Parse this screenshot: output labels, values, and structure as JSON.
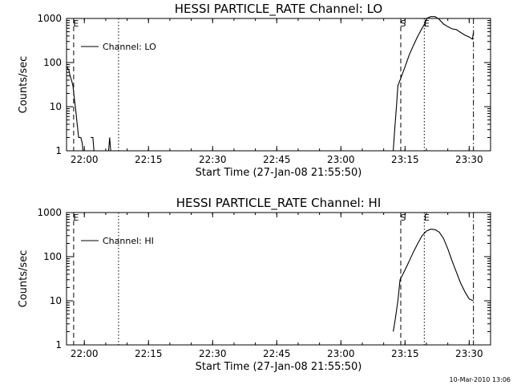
{
  "footer_timestamp": "10-Mar-2010 13:06",
  "chart_data": [
    {
      "type": "line",
      "title": "HESSI PARTICLE_RATE Channel: LO",
      "xlabel": "Start Time (27-Jan-08 21:55:50)",
      "ylabel": "Counts/sec",
      "yscale": "log",
      "ylim": [
        1,
        1000
      ],
      "xlim": [
        "21:55:50",
        "23:35:00"
      ],
      "xticks": [
        "22:00",
        "22:15",
        "22:30",
        "22:45",
        "23:00",
        "23:15",
        "23:30"
      ],
      "yticks": [
        "1",
        "10",
        "100",
        "1000"
      ],
      "legend": "Channel: LO",
      "legend_position": "top-left",
      "markers": [
        {
          "label": "E",
          "time": "21:57:30",
          "style": "dashed"
        },
        {
          "label": "",
          "time": "22:08:00",
          "style": "dotted"
        },
        {
          "label": "S",
          "time": "23:14:00",
          "style": "dashed"
        },
        {
          "label": "E",
          "time": "23:19:30",
          "style": "dotted"
        },
        {
          "label": "",
          "time": "23:31:00",
          "style": "dashdot"
        }
      ],
      "series": [
        {
          "name": "Channel: LO",
          "segments": [
            [
              [
                "21:55:50",
                80
              ],
              [
                "21:56:20",
                70
              ],
              [
                "21:56:40",
                50
              ],
              [
                "21:57:00",
                40
              ],
              [
                "21:57:20",
                30
              ],
              [
                "21:57:40",
                15
              ],
              [
                "21:58:00",
                8
              ],
              [
                "21:58:20",
                4
              ],
              [
                "21:58:40",
                2
              ],
              [
                "21:59:10",
                2
              ],
              [
                "21:59:30",
                1.5
              ],
              [
                "21:59:40",
                1
              ]
            ],
            [
              [
                "22:01:30",
                2
              ],
              [
                "22:02:00",
                2
              ],
              [
                "22:02:15",
                1
              ]
            ],
            [
              [
                "22:05:40",
                1
              ],
              [
                "22:05:55",
                2
              ],
              [
                "22:06:10",
                1
              ]
            ],
            [
              [
                "23:12:15",
                1
              ],
              [
                "23:12:35",
                3
              ],
              [
                "23:13:00",
                10
              ],
              [
                "23:13:20",
                30
              ],
              [
                "23:13:50",
                40
              ],
              [
                "23:15:00",
                80
              ],
              [
                "23:16:00",
                150
              ],
              [
                "23:17:00",
                250
              ],
              [
                "23:18:00",
                400
              ],
              [
                "23:19:00",
                600
              ],
              [
                "23:19:45",
                800
              ],
              [
                "23:20:00",
                1000
              ],
              [
                "23:21:00",
                1100
              ],
              [
                "23:22:00",
                1100
              ],
              [
                "23:23:00",
                950
              ],
              [
                "23:24:00",
                750
              ],
              [
                "23:25:00",
                650
              ],
              [
                "23:26:00",
                580
              ],
              [
                "23:27:00",
                560
              ],
              [
                "23:28:00",
                480
              ],
              [
                "23:29:00",
                420
              ],
              [
                "23:30:00",
                380
              ],
              [
                "23:30:45",
                340
              ],
              [
                "23:31:00",
                480
              ]
            ]
          ]
        }
      ]
    },
    {
      "type": "line",
      "title": "HESSI PARTICLE_RATE Channel: HI",
      "xlabel": "Start Time (27-Jan-08 21:55:50)",
      "ylabel": "Counts/sec",
      "yscale": "log",
      "ylim": [
        1,
        1000
      ],
      "xlim": [
        "21:55:50",
        "23:35:00"
      ],
      "xticks": [
        "22:00",
        "22:15",
        "22:30",
        "22:45",
        "23:00",
        "23:15",
        "23:30"
      ],
      "yticks": [
        "1",
        "10",
        "100",
        "1000"
      ],
      "legend": "Channel: HI",
      "legend_position": "top-left",
      "markers": [
        {
          "label": "E",
          "time": "21:57:30",
          "style": "dashed"
        },
        {
          "label": "",
          "time": "22:08:00",
          "style": "dotted"
        },
        {
          "label": "S",
          "time": "23:14:00",
          "style": "dashed"
        },
        {
          "label": "E",
          "time": "23:19:30",
          "style": "dotted"
        },
        {
          "label": "",
          "time": "23:31:00",
          "style": "dashdot"
        }
      ],
      "series": [
        {
          "name": "Channel: HI",
          "segments": [
            [
              [
                "23:12:15",
                2
              ],
              [
                "23:12:45",
                4
              ],
              [
                "23:13:20",
                10
              ],
              [
                "23:13:50",
                30
              ],
              [
                "23:15:00",
                50
              ],
              [
                "23:16:00",
                80
              ],
              [
                "23:17:00",
                130
              ],
              [
                "23:18:00",
                200
              ],
              [
                "23:19:00",
                300
              ],
              [
                "23:20:00",
                380
              ],
              [
                "23:21:00",
                420
              ],
              [
                "23:22:00",
                410
              ],
              [
                "23:23:00",
                360
              ],
              [
                "23:24:00",
                260
              ],
              [
                "23:25:00",
                150
              ],
              [
                "23:26:00",
                80
              ],
              [
                "23:27:00",
                45
              ],
              [
                "23:28:00",
                25
              ],
              [
                "23:29:00",
                16
              ],
              [
                "23:30:00",
                11
              ],
              [
                "23:31:00",
                10
              ]
            ]
          ]
        }
      ]
    }
  ]
}
